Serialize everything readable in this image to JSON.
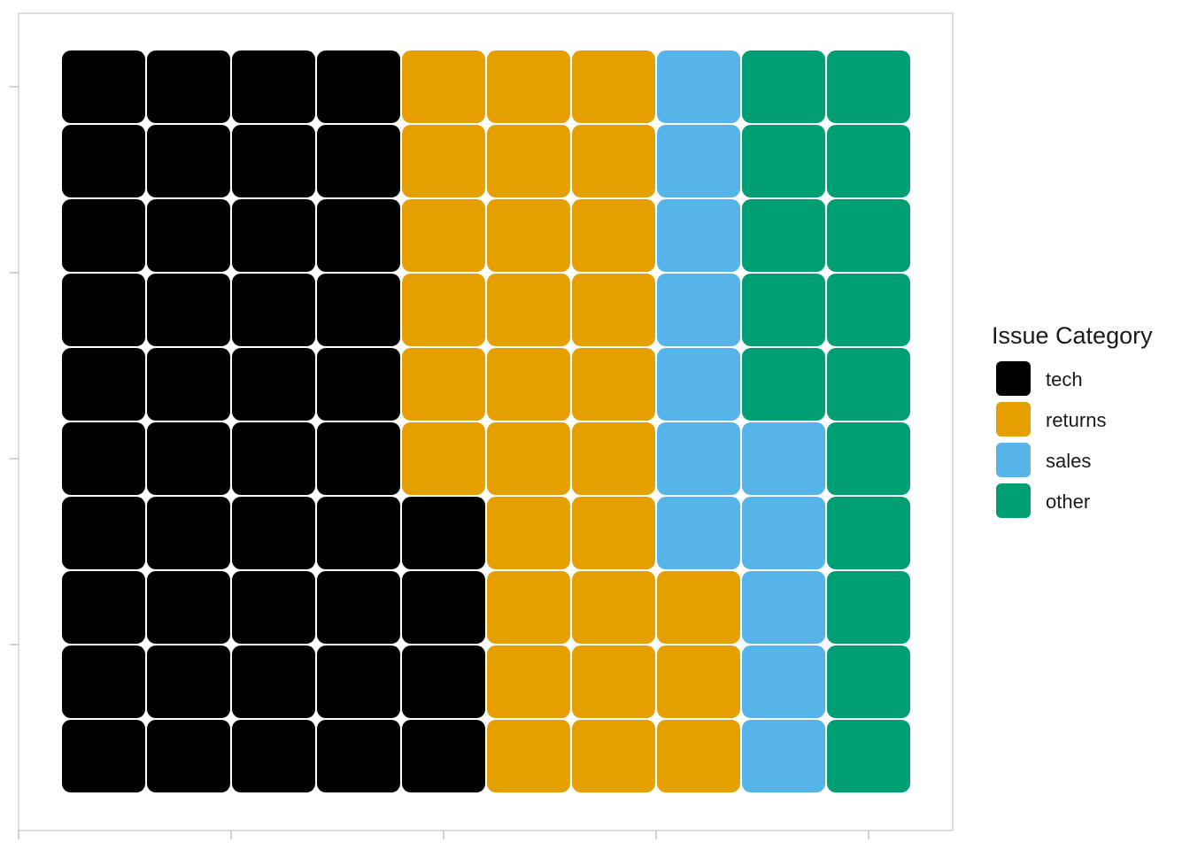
{
  "chart_data": {
    "type": "waffle",
    "title": "",
    "xlabel": "",
    "ylabel": "",
    "grid": false,
    "legend_position": "right",
    "legend": {
      "title": "Issue Category",
      "entries": [
        {
          "name": "tech",
          "color": "#000000"
        },
        {
          "name": "returns",
          "color": "#E69F00"
        },
        {
          "name": "sales",
          "color": "#56B4E9"
        },
        {
          "name": "other",
          "color": "#009E73"
        }
      ]
    },
    "categories": [
      "tech",
      "returns",
      "sales",
      "other"
    ],
    "values": [
      44,
      29,
      12,
      15
    ],
    "rows": 10,
    "columns": 10,
    "fill_order": "column-wise from bottom-left, filling each column bottom to top"
  }
}
